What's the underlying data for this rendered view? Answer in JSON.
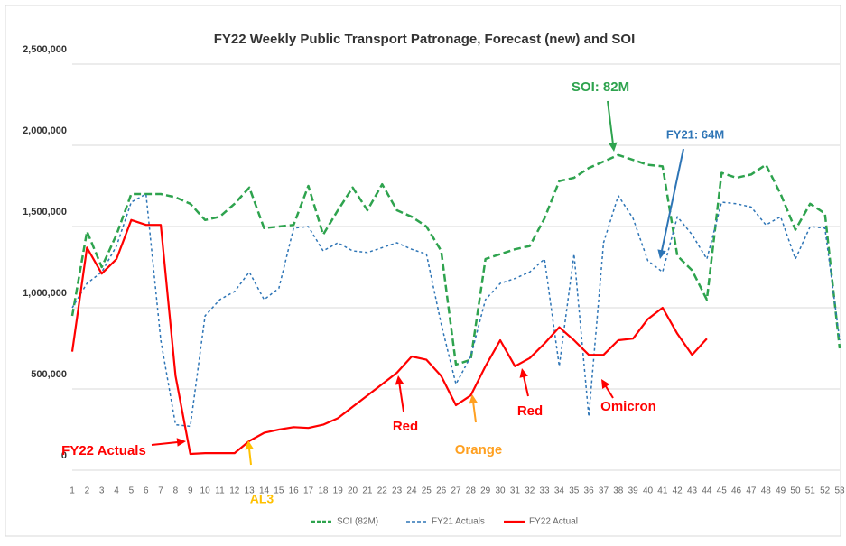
{
  "chart_data": {
    "type": "line",
    "title": "FY22 Weekly Public Transport Patronage,  Forecast (new) and SOI",
    "categories": [
      1,
      2,
      3,
      4,
      5,
      6,
      7,
      8,
      9,
      10,
      11,
      12,
      13,
      14,
      15,
      16,
      17,
      18,
      19,
      20,
      21,
      22,
      23,
      24,
      25,
      26,
      27,
      28,
      29,
      30,
      31,
      32,
      33,
      34,
      35,
      36,
      37,
      38,
      39,
      40,
      41,
      42,
      43,
      44,
      45,
      46,
      47,
      48,
      49,
      50,
      51,
      52,
      53
    ],
    "ylim": [
      0,
      2500000
    ],
    "yticks": [
      {
        "value": 0,
        "label": "0"
      },
      {
        "value": 500000,
        "label": "500,000"
      },
      {
        "value": 1000000,
        "label": "1,000,000"
      },
      {
        "value": 1500000,
        "label": "1,500,000"
      },
      {
        "value": 2000000,
        "label": "2,000,000"
      },
      {
        "value": 2500000,
        "label": "2,500,000"
      }
    ],
    "grid": true,
    "series": [
      {
        "name": "SOI (82M)",
        "color": "#2ea34e",
        "style": "dashed",
        "values": [
          950000,
          1470000,
          1250000,
          1450000,
          1700000,
          1700000,
          1700000,
          1680000,
          1640000,
          1540000,
          1560000,
          1640000,
          1740000,
          1490000,
          1500000,
          1510000,
          1750000,
          1450000,
          1600000,
          1740000,
          1600000,
          1760000,
          1600000,
          1560000,
          1500000,
          1350000,
          650000,
          680000,
          1300000,
          1330000,
          1360000,
          1380000,
          1550000,
          1780000,
          1800000,
          1860000,
          1900000,
          1940000,
          1910000,
          1880000,
          1870000,
          1320000,
          1230000,
          1050000,
          1830000,
          1800000,
          1820000,
          1880000,
          1700000,
          1480000,
          1640000,
          1580000,
          750000
        ]
      },
      {
        "name": "FY21 Actuals",
        "color": "#2e75b6",
        "style": "dotted",
        "values": [
          1000000,
          1150000,
          1220000,
          1380000,
          1650000,
          1700000,
          800000,
          280000,
          270000,
          950000,
          1050000,
          1100000,
          1220000,
          1050000,
          1120000,
          1490000,
          1500000,
          1350000,
          1400000,
          1350000,
          1340000,
          1370000,
          1400000,
          1360000,
          1330000,
          900000,
          530000,
          700000,
          1050000,
          1150000,
          1180000,
          1220000,
          1300000,
          640000,
          1330000,
          330000,
          1400000,
          1690000,
          1550000,
          1290000,
          1220000,
          1560000,
          1450000,
          1300000,
          1650000,
          1640000,
          1620000,
          1510000,
          1560000,
          1300000,
          1500000,
          1490000,
          800000
        ]
      },
      {
        "name": "FY22 Actual",
        "color": "#ff0000",
        "style": "solid",
        "values": [
          730000,
          1370000,
          1210000,
          1300000,
          1540000,
          1510000,
          1510000,
          580000,
          100000,
          105000,
          105000,
          105000,
          180000,
          230000,
          250000,
          265000,
          260000,
          280000,
          320000,
          390000,
          460000,
          530000,
          600000,
          700000,
          680000,
          580000,
          400000,
          460000,
          640000,
          800000,
          640000,
          690000,
          780000,
          880000,
          800000,
          710000,
          710000,
          800000,
          810000,
          930000,
          1000000,
          840000,
          710000,
          810000,
          null,
          null,
          null,
          null,
          null,
          null,
          null,
          null,
          null
        ]
      }
    ],
    "annotations": [
      {
        "text": "SOI: 82M",
        "color": "#2ea34e"
      },
      {
        "text": "FY21: 64M",
        "color": "#2e75b6"
      },
      {
        "text": "FY22 Actuals",
        "color": "#ff0000"
      },
      {
        "text": "AL3",
        "color": "#ffc000"
      },
      {
        "text": "Red",
        "color": "#ff0000"
      },
      {
        "text": "Orange",
        "color": "#ffa020"
      },
      {
        "text": "Red",
        "color": "#ff0000"
      },
      {
        "text": "Omicron",
        "color": "#ff0000"
      }
    ]
  }
}
